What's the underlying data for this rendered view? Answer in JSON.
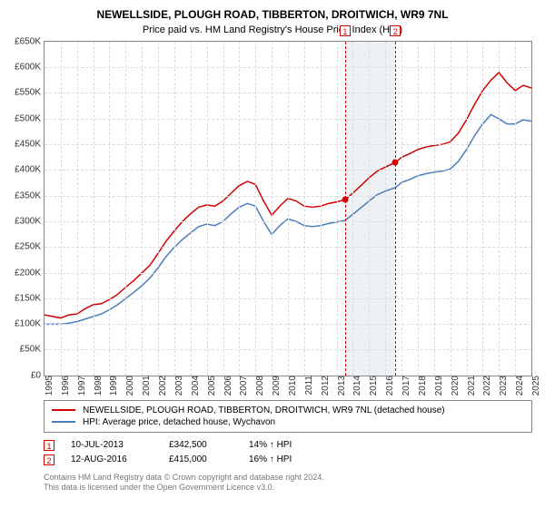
{
  "title": "NEWELLSIDE, PLOUGH ROAD, TIBBERTON, DROITWICH, WR9 7NL",
  "subtitle": "Price paid vs. HM Land Registry's House Price Index (HPI)",
  "chart": {
    "type": "line",
    "background_color": "#ffffff",
    "grid_color": "#dcdcdc",
    "border_color": "#888888",
    "ylim": [
      0,
      650000
    ],
    "ytick_step": 50000,
    "ytick_labels": [
      "£0",
      "£50K",
      "£100K",
      "£150K",
      "£200K",
      "£250K",
      "£300K",
      "£350K",
      "£400K",
      "£450K",
      "£500K",
      "£550K",
      "£600K",
      "£650K"
    ],
    "xlim": [
      1995,
      2025
    ],
    "xtick_step": 1,
    "xtick_labels": [
      "1995",
      "1996",
      "1997",
      "1998",
      "1999",
      "2000",
      "2001",
      "2002",
      "2003",
      "2004",
      "2005",
      "2006",
      "2007",
      "2008",
      "2009",
      "2010",
      "2011",
      "2012",
      "2013",
      "2014",
      "2015",
      "2016",
      "2017",
      "2018",
      "2019",
      "2020",
      "2021",
      "2022",
      "2023",
      "2024",
      "2025"
    ],
    "label_fontsize": 10,
    "line_width": 1.5,
    "marker_band_color": "#eef1f4",
    "marker_band": {
      "x_start": 2013.52,
      "x_end": 2016.62
    },
    "markers": [
      {
        "id": "1",
        "x": 2013.52,
        "color": "#d00000"
      },
      {
        "id": "2",
        "x": 2016.62,
        "color": "#d00000"
      }
    ],
    "sale_points": [
      {
        "x": 2013.52,
        "y": 342500,
        "color": "#d00000"
      },
      {
        "x": 2016.62,
        "y": 415000,
        "color": "#d00000"
      }
    ],
    "series": [
      {
        "name": "NEWELLSIDE, PLOUGH ROAD, TIBBERTON, DROITWICH, WR9 7NL (detached house)",
        "color": "#d00000",
        "points": [
          [
            1995,
            118000
          ],
          [
            1995.5,
            115000
          ],
          [
            1996,
            112000
          ],
          [
            1996.5,
            118000
          ],
          [
            1997,
            120000
          ],
          [
            1997.5,
            130000
          ],
          [
            1998,
            138000
          ],
          [
            1998.5,
            140000
          ],
          [
            1999,
            148000
          ],
          [
            1999.5,
            158000
          ],
          [
            2000,
            172000
          ],
          [
            2000.5,
            185000
          ],
          [
            2001,
            200000
          ],
          [
            2001.5,
            215000
          ],
          [
            2002,
            238000
          ],
          [
            2002.5,
            262000
          ],
          [
            2003,
            282000
          ],
          [
            2003.5,
            300000
          ],
          [
            2004,
            315000
          ],
          [
            2004.5,
            328000
          ],
          [
            2005,
            332000
          ],
          [
            2005.5,
            330000
          ],
          [
            2006,
            340000
          ],
          [
            2006.5,
            355000
          ],
          [
            2007,
            370000
          ],
          [
            2007.5,
            378000
          ],
          [
            2008,
            372000
          ],
          [
            2008.5,
            340000
          ],
          [
            2009,
            312000
          ],
          [
            2009.5,
            330000
          ],
          [
            2010,
            345000
          ],
          [
            2010.5,
            340000
          ],
          [
            2011,
            330000
          ],
          [
            2011.5,
            328000
          ],
          [
            2012,
            330000
          ],
          [
            2012.5,
            335000
          ],
          [
            2013,
            338000
          ],
          [
            2013.52,
            342500
          ],
          [
            2014,
            355000
          ],
          [
            2014.5,
            370000
          ],
          [
            2015,
            385000
          ],
          [
            2015.5,
            398000
          ],
          [
            2016,
            406000
          ],
          [
            2016.62,
            415000
          ],
          [
            2017,
            425000
          ],
          [
            2017.5,
            432000
          ],
          [
            2018,
            440000
          ],
          [
            2018.5,
            445000
          ],
          [
            2019,
            448000
          ],
          [
            2019.5,
            450000
          ],
          [
            2020,
            455000
          ],
          [
            2020.5,
            472000
          ],
          [
            2021,
            498000
          ],
          [
            2021.5,
            528000
          ],
          [
            2022,
            555000
          ],
          [
            2022.5,
            575000
          ],
          [
            2023,
            590000
          ],
          [
            2023.5,
            570000
          ],
          [
            2024,
            555000
          ],
          [
            2024.5,
            565000
          ],
          [
            2025,
            560000
          ]
        ]
      },
      {
        "name": "HPI: Average price, detached house, Wychavon",
        "color": "#4a7ebb",
        "points": [
          [
            1995,
            100000
          ],
          [
            1995.5,
            100000
          ],
          [
            1996,
            100000
          ],
          [
            1996.5,
            102000
          ],
          [
            1997,
            105000
          ],
          [
            1997.5,
            110000
          ],
          [
            1998,
            115000
          ],
          [
            1998.5,
            120000
          ],
          [
            1999,
            128000
          ],
          [
            1999.5,
            138000
          ],
          [
            2000,
            150000
          ],
          [
            2000.5,
            162000
          ],
          [
            2001,
            175000
          ],
          [
            2001.5,
            190000
          ],
          [
            2002,
            210000
          ],
          [
            2002.5,
            232000
          ],
          [
            2003,
            250000
          ],
          [
            2003.5,
            265000
          ],
          [
            2004,
            278000
          ],
          [
            2004.5,
            290000
          ],
          [
            2005,
            295000
          ],
          [
            2005.5,
            292000
          ],
          [
            2006,
            300000
          ],
          [
            2006.5,
            315000
          ],
          [
            2007,
            328000
          ],
          [
            2007.5,
            335000
          ],
          [
            2008,
            330000
          ],
          [
            2008.5,
            300000
          ],
          [
            2009,
            275000
          ],
          [
            2009.5,
            292000
          ],
          [
            2010,
            305000
          ],
          [
            2010.5,
            300000
          ],
          [
            2011,
            292000
          ],
          [
            2011.5,
            290000
          ],
          [
            2012,
            292000
          ],
          [
            2012.5,
            296000
          ],
          [
            2013,
            299000
          ],
          [
            2013.52,
            302000
          ],
          [
            2014,
            314000
          ],
          [
            2014.5,
            327000
          ],
          [
            2015,
            340000
          ],
          [
            2015.5,
            352000
          ],
          [
            2016,
            359000
          ],
          [
            2016.62,
            366000
          ],
          [
            2017,
            376000
          ],
          [
            2017.5,
            382000
          ],
          [
            2018,
            389000
          ],
          [
            2018.5,
            393000
          ],
          [
            2019,
            396000
          ],
          [
            2019.5,
            398000
          ],
          [
            2020,
            402000
          ],
          [
            2020.5,
            417000
          ],
          [
            2021,
            440000
          ],
          [
            2021.5,
            467000
          ],
          [
            2022,
            490000
          ],
          [
            2022.5,
            508000
          ],
          [
            2023,
            500000
          ],
          [
            2023.5,
            490000
          ],
          [
            2024,
            490000
          ],
          [
            2024.5,
            498000
          ],
          [
            2025,
            495000
          ]
        ]
      }
    ]
  },
  "legend": {
    "items": [
      {
        "color": "#d00000",
        "label": "NEWELLSIDE, PLOUGH ROAD, TIBBERTON, DROITWICH, WR9 7NL (detached house)"
      },
      {
        "color": "#4a7ebb",
        "label": "HPI: Average price, detached house, Wychavon"
      }
    ]
  },
  "sales": [
    {
      "id": "1",
      "color": "#d00000",
      "date": "10-JUL-2013",
      "price": "£342,500",
      "delta": "14% ↑ HPI"
    },
    {
      "id": "2",
      "color": "#d00000",
      "date": "12-AUG-2016",
      "price": "£415,000",
      "delta": "16% ↑ HPI"
    }
  ],
  "footer": {
    "line1": "Contains HM Land Registry data © Crown copyright and database right 2024.",
    "line2": "This data is licensed under the Open Government Licence v3.0."
  }
}
